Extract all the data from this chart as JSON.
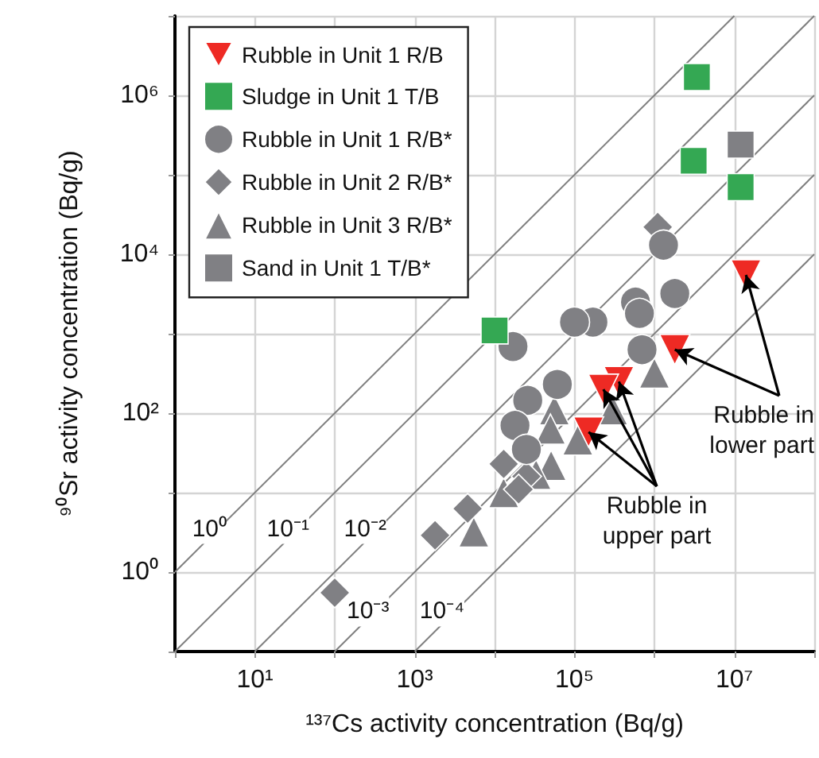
{
  "chart_data": {
    "type": "scatter",
    "xlabel": "¹³⁷Cs activity concentration (Bq/g)",
    "ylabel": "⁹⁰Sr activity concentration (Bq/g)",
    "log": "xy",
    "grid": true,
    "legend": "top left",
    "xlim": [
      1,
      100000000
    ],
    "ylim": [
      0.1,
      10000000
    ],
    "xticks": [
      {
        "value": 1,
        "label": null
      },
      {
        "value": 10,
        "label": "10¹"
      },
      {
        "value": 100,
        "label": null
      },
      {
        "value": 1000,
        "label": "10³"
      },
      {
        "value": 10000,
        "label": null
      },
      {
        "value": 100000,
        "label": "10⁵"
      },
      {
        "value": 1000000,
        "label": null
      },
      {
        "value": 10000000,
        "label": "10⁷"
      },
      {
        "value": 100000000,
        "label": null
      }
    ],
    "yticks": [
      {
        "value": 0.1,
        "label": null
      },
      {
        "value": 1,
        "label": "10⁰"
      },
      {
        "value": 10,
        "label": null
      },
      {
        "value": 100,
        "label": "10²"
      },
      {
        "value": 1000,
        "label": null
      },
      {
        "value": 10000,
        "label": "10⁴"
      },
      {
        "value": 100000,
        "label": null
      },
      {
        "value": 1000000,
        "label": "10⁶"
      },
      {
        "value": 10000000,
        "label": null
      }
    ],
    "series": [
      {
        "type": "line",
        "color": "#7f7f7f",
        "marker": "none",
        "x": [
          1,
          10000000
        ],
        "values": [
          1,
          10000000
        ]
      },
      {
        "type": "line",
        "color": "#7f7f7f",
        "marker": "none",
        "x": [
          1,
          100000000
        ],
        "values": [
          0.1,
          10000000
        ]
      },
      {
        "type": "line",
        "color": "#7f7f7f",
        "marker": "none",
        "x": [
          10,
          100000000
        ],
        "values": [
          0.1,
          1000000
        ]
      },
      {
        "type": "line",
        "color": "#7f7f7f",
        "marker": "none",
        "x": [
          100,
          100000000
        ],
        "values": [
          0.1,
          100000
        ]
      },
      {
        "type": "line",
        "color": "#7f7f7f",
        "marker": "none",
        "x": [
          1000,
          100000000
        ],
        "values": [
          0.1,
          10000
        ]
      },
      {
        "name": "Rubble in Unit 1 R/B",
        "color": "#ee2a24",
        "marker": "triangle-down",
        "x": [
          14000000,
          1800000,
          360000,
          230000,
          150000
        ],
        "values": [
          5500,
          630,
          250,
          200,
          58
        ]
      },
      {
        "name": "Sludge in Unit 1 T/B",
        "color": "#34a853",
        "marker": "square",
        "x": [
          3400000,
          3100000,
          12000000,
          10000
        ],
        "values": [
          1700000,
          150000,
          70000,
          1100
        ]
      },
      {
        "name": "Rubble in Unit 1 R/B*",
        "color": "#808084",
        "marker": "circle",
        "x": [
          1300000,
          1800000,
          580000,
          650000,
          170000,
          100000,
          17000,
          700000,
          61000,
          26000,
          18000,
          25000
        ],
        "values": [
          13000,
          3200,
          2500,
          1800,
          1400,
          1400,
          690,
          630,
          230,
          145,
          70,
          35
        ]
      },
      {
        "name": "Rubble in Unit 2 R/B*",
        "color": "#808084",
        "marker": "diamond",
        "x": [
          1100000,
          13000,
          25000,
          20000,
          4600,
          1800,
          100
        ],
        "values": [
          22000,
          23,
          16,
          11,
          6.3,
          2.9,
          0.55
        ]
      },
      {
        "name": "Rubble in Unit 3 R/B*",
        "color": "#808084",
        "marker": "triangle",
        "x": [
          1000000,
          56000,
          50000,
          51000,
          33000,
          13000,
          5500,
          110000,
          300000
        ],
        "values": [
          320,
          110,
          63,
          22,
          17,
          10,
          3.2,
          46,
          110
        ]
      },
      {
        "name": "Sand in Unit 1 T/B*",
        "color": "#808084",
        "marker": "square",
        "x": [
          12000000
        ],
        "values": [
          240000
        ]
      }
    ],
    "annotations": [
      {
        "text": "10⁰",
        "x": 2.7,
        "y": 3.5
      },
      {
        "text": "10⁻¹",
        "x": 26,
        "y": 3.5
      },
      {
        "text": "10⁻²",
        "x": 240,
        "y": 3.5
      },
      {
        "text": "10⁻³",
        "x": 260,
        "y": 0.32
      },
      {
        "text": "10⁻⁴",
        "x": 2200,
        "y": 0.32
      },
      {
        "text": "Rubble in\nlower part",
        "x": 14000000,
        "y": 5500
      },
      {
        "text": "Rubble in\nupper part",
        "x": 230000,
        "y": 200
      }
    ]
  }
}
